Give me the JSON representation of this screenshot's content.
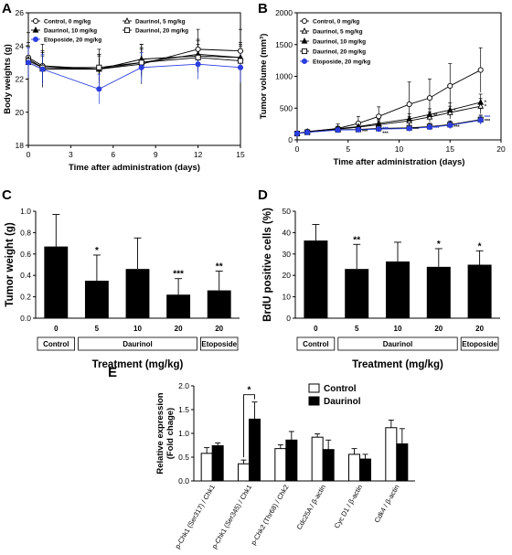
{
  "panels": {
    "A": "A",
    "B": "B",
    "C": "C",
    "D": "D",
    "E": "E"
  },
  "chart_data": [
    {
      "id": "A",
      "type": "line",
      "xlabel": "Time after administration (days)",
      "ylabel": "Body weights (g)",
      "xlim": [
        0,
        15
      ],
      "ylim": [
        18,
        26
      ],
      "xticks": [
        0,
        3,
        6,
        9,
        12,
        15
      ],
      "yticks": [
        18,
        20,
        22,
        24,
        26
      ],
      "legend": "top",
      "series": [
        {
          "name": "Control, 0 mg/kg",
          "marker": "circle-open",
          "color": "#000000",
          "x": [
            0,
            1,
            5,
            8,
            12,
            15
          ],
          "y": [
            23.3,
            22.8,
            22.6,
            22.9,
            23.8,
            23.7
          ],
          "err": [
            1.5,
            1.3,
            1.2,
            1.2,
            1.2,
            1.3
          ]
        },
        {
          "name": "Daurinol, 5 mg/kg",
          "marker": "triangle-open",
          "color": "#000000",
          "x": [
            0,
            1,
            5,
            8,
            12,
            15
          ],
          "y": [
            23.0,
            22.6,
            22.6,
            23.0,
            23.5,
            23.3
          ],
          "err": [
            0.9,
            0.8,
            0.8,
            0.8,
            0.8,
            0.8
          ]
        },
        {
          "name": "Daurinol, 10 mg/kg",
          "marker": "triangle-filled",
          "color": "#000000",
          "x": [
            0,
            1,
            5,
            8,
            12,
            15
          ],
          "y": [
            23.2,
            22.7,
            22.6,
            23.2,
            23.4,
            23.3
          ],
          "err": [
            1.0,
            1.0,
            0.9,
            0.9,
            1.0,
            0.9
          ]
        },
        {
          "name": "Daurinol, 20 mg/kg",
          "marker": "square-open",
          "color": "#000000",
          "x": [
            0,
            1,
            5,
            8,
            12,
            15
          ],
          "y": [
            23.1,
            22.7,
            22.7,
            23.0,
            23.3,
            23.1
          ],
          "err": [
            0.9,
            0.9,
            0.8,
            0.9,
            0.8,
            0.9
          ]
        },
        {
          "name": "Etoposide, 20 mg/kg",
          "marker": "circle-filled",
          "color": "#2b3ee0",
          "x": [
            0,
            1,
            5,
            8,
            12,
            15
          ],
          "y": [
            23.0,
            22.6,
            21.4,
            22.7,
            22.9,
            22.7
          ],
          "err": [
            0.9,
            0.9,
            0.9,
            0.9,
            0.9,
            0.9
          ]
        }
      ]
    },
    {
      "id": "B",
      "type": "line",
      "xlabel": "Time after administration (days)",
      "ylabel": "Tumor volume (mm³)",
      "xlim": [
        0,
        20
      ],
      "ylim": [
        0,
        2000
      ],
      "xticks": [
        0,
        5,
        10,
        15,
        20
      ],
      "yticks": [
        0,
        500,
        1000,
        1500,
        2000
      ],
      "legend": "top-left",
      "series": [
        {
          "name": "Control, 0 mg/kg",
          "marker": "circle-open",
          "color": "#000000",
          "x": [
            0,
            1,
            4,
            6,
            8,
            11,
            13,
            15,
            18
          ],
          "y": [
            100,
            130,
            180,
            260,
            370,
            560,
            660,
            850,
            1100
          ],
          "err": [
            20,
            30,
            70,
            110,
            150,
            350,
            300,
            350,
            350
          ]
        },
        {
          "name": "Daurinol, 5 mg/kg",
          "marker": "triangle-open",
          "color": "#000000",
          "x": [
            0,
            1,
            4,
            6,
            8,
            11,
            13,
            15,
            18
          ],
          "y": [
            100,
            125,
            170,
            200,
            240,
            300,
            360,
            430,
            530
          ],
          "err": [
            20,
            25,
            40,
            50,
            60,
            70,
            80,
            100,
            120
          ]
        },
        {
          "name": "Daurinol, 10 mg/kg",
          "marker": "triangle-filled",
          "color": "#000000",
          "x": [
            0,
            1,
            4,
            6,
            8,
            11,
            13,
            15,
            18
          ],
          "y": [
            100,
            130,
            175,
            210,
            260,
            330,
            400,
            470,
            590
          ],
          "err": [
            20,
            25,
            40,
            50,
            60,
            80,
            90,
            110,
            130
          ]
        },
        {
          "name": "Daurinol, 20 mg/kg",
          "marker": "square-open",
          "color": "#000000",
          "x": [
            0,
            1,
            4,
            6,
            8,
            11,
            13,
            15,
            18
          ],
          "y": [
            100,
            120,
            160,
            165,
            180,
            190,
            210,
            240,
            320
          ],
          "err": [
            15,
            20,
            30,
            35,
            40,
            40,
            50,
            60,
            70
          ]
        },
        {
          "name": "Etoposide, 20 mg/kg",
          "marker": "circle-filled",
          "color": "#2b3ee0",
          "x": [
            0,
            1,
            4,
            6,
            8,
            11,
            13,
            15,
            18
          ],
          "y": [
            100,
            120,
            155,
            160,
            170,
            180,
            200,
            230,
            310
          ],
          "err": [
            15,
            20,
            30,
            30,
            35,
            40,
            45,
            55,
            65
          ]
        }
      ],
      "annotations": [
        {
          "text": "*",
          "x": 18,
          "y": 600,
          "color": "#000000"
        },
        {
          "text": "*",
          "x": 18,
          "y": 530,
          "color": "#000000"
        },
        {
          "text": "***",
          "x": 18,
          "y": 360,
          "color": "#2b3ee0"
        },
        {
          "text": "***",
          "x": 18,
          "y": 300,
          "color": "#000000"
        },
        {
          "text": "*",
          "x": 15,
          "y": 470,
          "color": "#000000"
        },
        {
          "text": "**",
          "x": 13,
          "y": 390,
          "color": "#000000"
        },
        {
          "text": "***",
          "x": 15,
          "y": 210,
          "color": "#000000"
        },
        {
          "text": "***",
          "x": 13,
          "y": 190,
          "color": "#2b3ee0"
        },
        {
          "text": "***",
          "x": 11,
          "y": 170,
          "color": "#000000"
        },
        {
          "text": "***",
          "x": 8,
          "y": 180,
          "color": "#2b3ee0"
        },
        {
          "text": "***",
          "x": 8,
          "y": 110,
          "color": "#000000"
        },
        {
          "text": "***",
          "x": 6,
          "y": 140,
          "color": "#000000"
        }
      ]
    },
    {
      "id": "C",
      "type": "bar",
      "xlabel": "Treatment (mg/kg)",
      "ylabel": "Tumor weight (g)",
      "ylim": [
        0,
        1.0
      ],
      "yticks": [
        0.0,
        0.2,
        0.4,
        0.6,
        0.8,
        1.0
      ],
      "categories": [
        "0",
        "5",
        "10",
        "20",
        "20"
      ],
      "groups": [
        {
          "label": "Control",
          "span": [
            0,
            0
          ]
        },
        {
          "label": "Daurinol",
          "span": [
            1,
            3
          ]
        },
        {
          "label": "Etoposide",
          "span": [
            4,
            4
          ]
        }
      ],
      "values": [
        0.67,
        0.35,
        0.46,
        0.22,
        0.26
      ],
      "errors": [
        0.3,
        0.24,
        0.29,
        0.15,
        0.18
      ],
      "significance": [
        "",
        "*",
        "",
        "***",
        "**"
      ]
    },
    {
      "id": "D",
      "type": "bar",
      "xlabel": "Treatment (mg/kg)",
      "ylabel": "BrdU positive cells (%)",
      "ylim": [
        0,
        50
      ],
      "yticks": [
        0,
        10,
        20,
        30,
        40,
        50
      ],
      "categories": [
        "0",
        "5",
        "10",
        "20",
        "20"
      ],
      "groups": [
        {
          "label": "Control",
          "span": [
            0,
            0
          ]
        },
        {
          "label": "Daurinol",
          "span": [
            1,
            3
          ]
        },
        {
          "label": "Etoposide",
          "span": [
            4,
            4
          ]
        }
      ],
      "values": [
        36.3,
        23.0,
        26.5,
        24.0,
        25.0
      ],
      "errors": [
        7.5,
        11.5,
        9.0,
        8.5,
        6.5
      ],
      "significance": [
        "",
        "**",
        "",
        "*",
        "*"
      ]
    },
    {
      "id": "E",
      "type": "bar",
      "ylabel": "Relative expression\n(Fold chage)",
      "ylim": [
        0,
        2.0
      ],
      "yticks": [
        0.0,
        0.5,
        1.0,
        1.5,
        2.0
      ],
      "categories": [
        "p-Chk1 (Ser317) / Chk1",
        "p-Chk1 (Ser345) / Chk1",
        "p-Chk2 (Thr68) / Chk2",
        "Cdc25A / β-actin",
        "Cyc D1 / β-actin",
        "Cdk4 / β-actin"
      ],
      "legend": "top-right",
      "series": [
        {
          "name": "Control",
          "color": "#ffffff",
          "values": [
            0.58,
            0.36,
            0.68,
            0.92,
            0.56,
            1.12
          ],
          "errors": [
            0.12,
            0.08,
            0.08,
            0.07,
            0.12,
            0.16
          ]
        },
        {
          "name": "Daurinol",
          "color": "#000000",
          "values": [
            0.74,
            1.3,
            0.86,
            0.66,
            0.46,
            0.78
          ],
          "errors": [
            0.06,
            0.36,
            0.18,
            0.2,
            0.1,
            0.32
          ]
        }
      ],
      "brackets": [
        {
          "from": 1,
          "text": "*"
        }
      ]
    }
  ]
}
